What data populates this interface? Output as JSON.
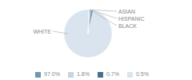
{
  "chart_data": {
    "type": "pie",
    "categories": [
      "WHITE",
      "ASIAN",
      "HISPANIC",
      "BLACK"
    ],
    "values": [
      97.0,
      1.8,
      0.7,
      0.5
    ],
    "value_labels": [
      "97.0%",
      "1.8%",
      "0.7%",
      "0.5%"
    ],
    "colors": [
      "#d9e4ee",
      "#7096b0",
      "#4a6f8a",
      "#c5d5e4"
    ],
    "legend": "bottom"
  }
}
